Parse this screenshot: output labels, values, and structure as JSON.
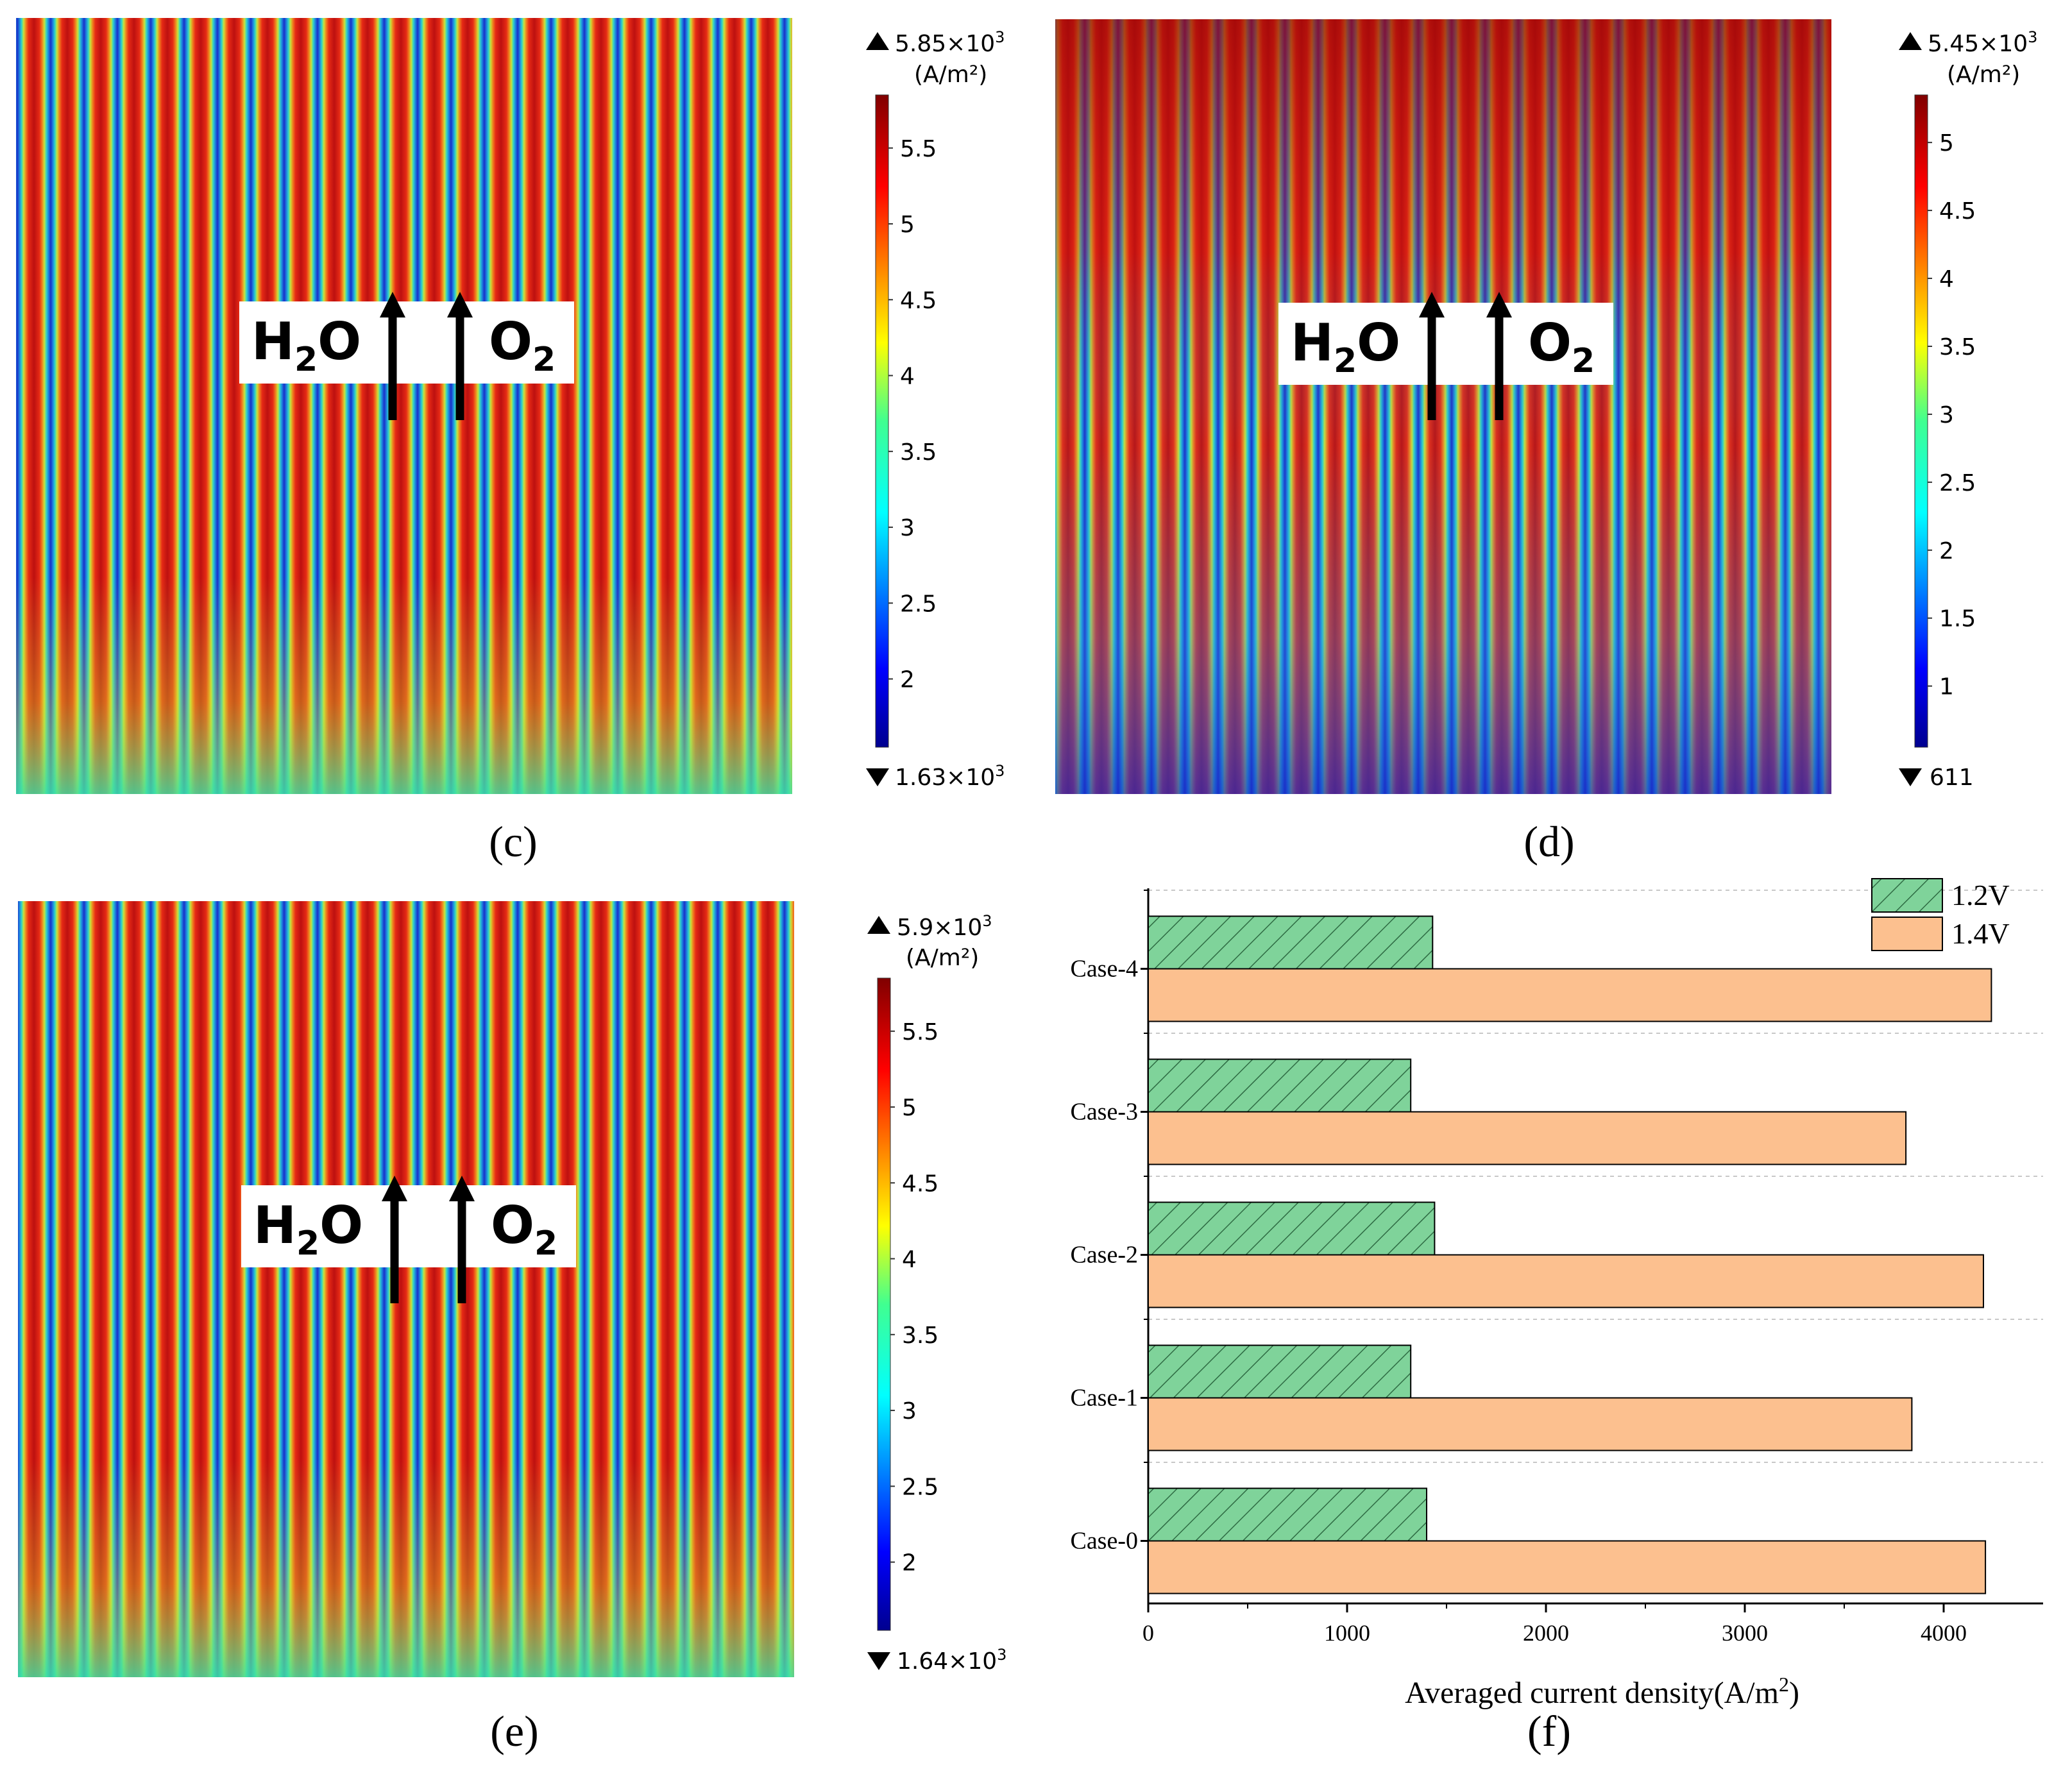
{
  "panels": {
    "c": {
      "label": "(c)",
      "arrow_left_label": "H",
      "arrow_left_sub": "2",
      "arrow_left_tail": "O",
      "arrow_right_label": "O",
      "arrow_right_sub": "2",
      "colorbar": {
        "max_label": "5.85×10",
        "max_exp": "3",
        "unit": "(A/m²)",
        "min_label": "1.63×10",
        "min_exp": "3",
        "ticks": [
          "5.5",
          "5",
          "4.5",
          "4",
          "3.5",
          "3",
          "2.5",
          "2"
        ]
      }
    },
    "d": {
      "label": "(d)",
      "arrow_left_label": "H",
      "arrow_left_sub": "2",
      "arrow_left_tail": "O",
      "arrow_right_label": "O",
      "arrow_right_sub": "2",
      "colorbar": {
        "max_label": "5.45×10",
        "max_exp": "3",
        "unit": "(A/m²)",
        "min_label": "611",
        "ticks": [
          "5",
          "4.5",
          "4",
          "3.5",
          "3",
          "2.5",
          "2",
          "1.5",
          "1"
        ]
      }
    },
    "e": {
      "label": "(e)",
      "arrow_left_label": "H",
      "arrow_left_sub": "2",
      "arrow_left_tail": "O",
      "arrow_right_label": "O",
      "arrow_right_sub": "2",
      "colorbar": {
        "max_label": "5.9×10",
        "max_exp": "3",
        "unit": "(A/m²)",
        "min_label": "1.64×10",
        "min_exp": "3",
        "ticks": [
          "5.5",
          "5",
          "4.5",
          "4",
          "3.5",
          "3",
          "2.5",
          "2"
        ]
      }
    },
    "f": {
      "label": "(f)"
    }
  },
  "chart_data": {
    "type": "bar",
    "orientation": "horizontal",
    "categories": [
      "Case-0",
      "Case-1",
      "Case-2",
      "Case-3",
      "Case-4"
    ],
    "series": [
      {
        "name": "1.2V",
        "values": [
          1400,
          1320,
          1440,
          1320,
          1430
        ],
        "color": "#7fd39a",
        "hatch": true
      },
      {
        "name": "1.4V",
        "values": [
          4210,
          3840,
          4200,
          3810,
          4240
        ],
        "color": "#fcc08f",
        "hatch": false
      }
    ],
    "xlabel": "Averaged current density(A/m",
    "xlabel_sup": "2",
    "xlabel_close": ")",
    "xlim": [
      0,
      4500
    ],
    "xticks": [
      "0",
      "1000",
      "2000",
      "3000",
      "4000"
    ],
    "legend_position": "top-right",
    "grid": "horizontal-dashed"
  }
}
